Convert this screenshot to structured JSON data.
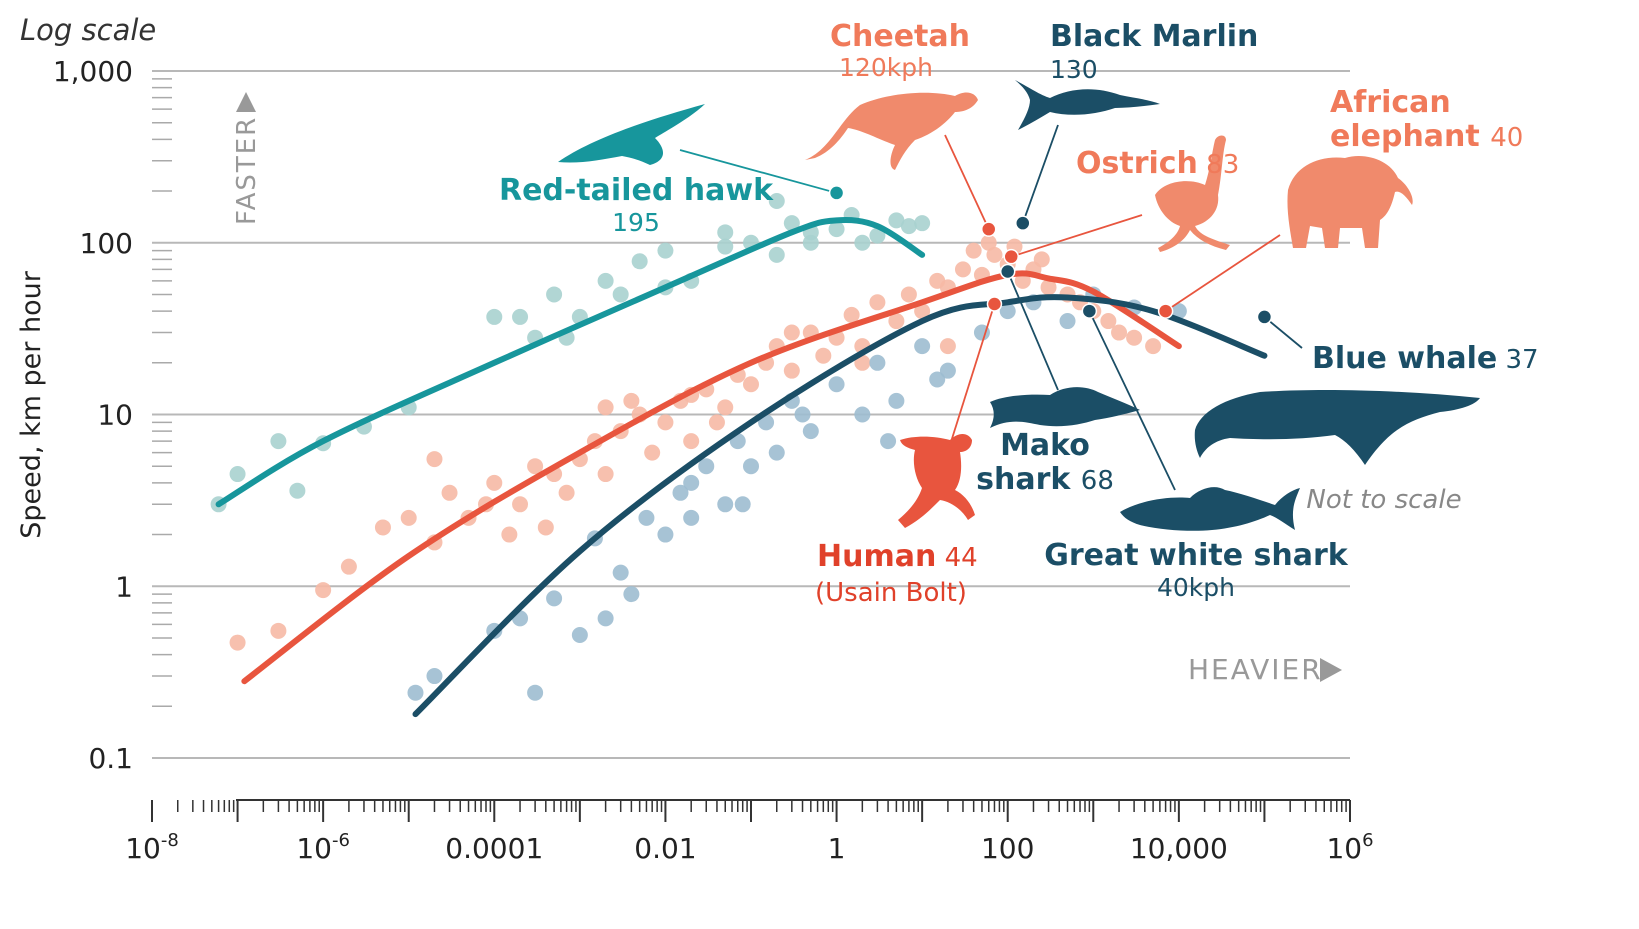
{
  "chart_data": {
    "type": "scatter",
    "title": "",
    "y_scale_note": "Log scale",
    "xlabel": "",
    "ylabel": "Speed, km per hour",
    "x_scale": "log",
    "y_scale": "log",
    "xlim": [
      1e-08,
      1000000
    ],
    "ylim": [
      0.1,
      1000
    ],
    "grid": "horizontal",
    "x_ticks": [
      {
        "value": 1e-08,
        "label": "10",
        "sup": "-8"
      },
      {
        "value": 1e-06,
        "label": "10",
        "sup": "-6"
      },
      {
        "value": 0.0001,
        "label": "0.0001",
        "sup": ""
      },
      {
        "value": 0.01,
        "label": "0.01",
        "sup": ""
      },
      {
        "value": 1,
        "label": "1",
        "sup": ""
      },
      {
        "value": 100,
        "label": "100",
        "sup": ""
      },
      {
        "value": 10000,
        "label": "10,000",
        "sup": ""
      },
      {
        "value": 1000000,
        "label": "10",
        "sup": "6"
      }
    ],
    "y_ticks": [
      {
        "value": 0.1,
        "label": "0.1"
      },
      {
        "value": 1,
        "label": "1"
      },
      {
        "value": 10,
        "label": "10"
      },
      {
        "value": 100,
        "label": "100"
      },
      {
        "value": 1000,
        "label": "1,000"
      }
    ],
    "direction_labels": {
      "faster": "FASTER",
      "heavier": "HEAVIER"
    },
    "note": "Not to scale",
    "colors": {
      "fliers": "#17969c",
      "fliers_points": "#a8d2cf",
      "runners": "#e8553e",
      "runners_points": "#f6b9a5",
      "swimmers": "#1b4e66",
      "swimmers_points": "#9dbcd0",
      "grid": "#b8b8b8",
      "axis": "#333333"
    },
    "series": [
      {
        "group": "fliers",
        "trend": [
          [
            6e-08,
            3
          ],
          [
            1e-06,
            7
          ],
          [
            0.0001,
            20
          ],
          [
            0.01,
            55
          ],
          [
            0.3,
            115
          ],
          [
            1,
            135
          ],
          [
            3,
            125
          ],
          [
            10,
            85
          ]
        ],
        "points": [
          [
            6e-08,
            3
          ],
          [
            1e-07,
            4.5
          ],
          [
            3e-07,
            7
          ],
          [
            5e-07,
            3.6
          ],
          [
            1e-06,
            6.8
          ],
          [
            3e-06,
            8.5
          ],
          [
            1e-05,
            11
          ],
          [
            0.0001,
            37
          ],
          [
            0.0002,
            37
          ],
          [
            0.0003,
            28
          ],
          [
            0.0005,
            50
          ],
          [
            0.0007,
            28
          ],
          [
            0.001,
            37
          ],
          [
            0.002,
            60
          ],
          [
            0.003,
            50
          ],
          [
            0.005,
            78
          ],
          [
            0.01,
            90
          ],
          [
            0.01,
            55
          ],
          [
            0.02,
            60
          ],
          [
            0.05,
            115
          ],
          [
            0.1,
            100
          ],
          [
            0.2,
            175
          ],
          [
            0.3,
            130
          ],
          [
            0.5,
            100
          ],
          [
            1,
            120
          ],
          [
            1.5,
            145
          ],
          [
            2,
            100
          ],
          [
            3,
            110
          ],
          [
            5,
            135
          ],
          [
            7,
            125
          ],
          [
            10,
            130
          ],
          [
            0.05,
            95
          ],
          [
            0.2,
            85
          ],
          [
            0.5,
            115
          ]
        ]
      },
      {
        "group": "runners",
        "trend": [
          [
            1.2e-07,
            0.28
          ],
          [
            1e-05,
            1.5
          ],
          [
            0.001,
            6
          ],
          [
            0.1,
            20
          ],
          [
            10,
            45
          ],
          [
            100,
            65
          ],
          [
            300,
            62
          ],
          [
            1000,
            52
          ],
          [
            10000,
            25
          ]
        ],
        "points": [
          [
            1e-07,
            0.47
          ],
          [
            3e-07,
            0.55
          ],
          [
            1e-06,
            0.95
          ],
          [
            2e-06,
            1.3
          ],
          [
            5e-06,
            2.2
          ],
          [
            1e-05,
            2.5
          ],
          [
            2e-05,
            1.8
          ],
          [
            3e-05,
            3.5
          ],
          [
            5e-05,
            2.5
          ],
          [
            0.0001,
            4
          ],
          [
            0.00015,
            2
          ],
          [
            0.0002,
            3
          ],
          [
            0.0003,
            5
          ],
          [
            0.0005,
            4.5
          ],
          [
            0.0007,
            3.5
          ],
          [
            0.001,
            5.5
          ],
          [
            0.0015,
            7
          ],
          [
            0.002,
            4.5
          ],
          [
            0.003,
            8
          ],
          [
            0.005,
            10
          ],
          [
            0.007,
            6
          ],
          [
            0.01,
            9
          ],
          [
            0.015,
            12
          ],
          [
            0.02,
            7
          ],
          [
            0.03,
            14
          ],
          [
            0.05,
            11
          ],
          [
            0.07,
            17
          ],
          [
            0.1,
            15
          ],
          [
            0.15,
            20
          ],
          [
            0.2,
            25
          ],
          [
            0.3,
            18
          ],
          [
            0.5,
            30
          ],
          [
            0.7,
            22
          ],
          [
            1,
            28
          ],
          [
            1.5,
            38
          ],
          [
            2,
            25
          ],
          [
            3,
            45
          ],
          [
            5,
            35
          ],
          [
            7,
            50
          ],
          [
            10,
            40
          ],
          [
            15,
            60
          ],
          [
            20,
            55
          ],
          [
            30,
            70
          ],
          [
            50,
            65
          ],
          [
            70,
            85
          ],
          [
            100,
            75
          ],
          [
            150,
            60
          ],
          [
            200,
            70
          ],
          [
            300,
            55
          ],
          [
            500,
            50
          ],
          [
            700,
            45
          ],
          [
            1000,
            40
          ],
          [
            1500,
            35
          ],
          [
            2000,
            30
          ],
          [
            3000,
            28
          ],
          [
            5000,
            25
          ],
          [
            2e-05,
            5.5
          ],
          [
            8e-05,
            3
          ],
          [
            0.0004,
            2.2
          ],
          [
            0.002,
            11
          ],
          [
            0.004,
            12
          ],
          [
            0.02,
            13
          ],
          [
            0.04,
            9
          ],
          [
            0.3,
            30
          ],
          [
            2,
            20
          ],
          [
            20,
            25
          ],
          [
            40,
            90
          ],
          [
            60,
            100
          ],
          [
            120,
            95
          ],
          [
            250,
            80
          ]
        ]
      },
      {
        "group": "swimmers",
        "trend": [
          [
            1.2e-05,
            0.18
          ],
          [
            0.001,
            1.6
          ],
          [
            0.1,
            9
          ],
          [
            10,
            35
          ],
          [
            100,
            45
          ],
          [
            500,
            48
          ],
          [
            5000,
            40
          ],
          [
            100000,
            22
          ]
        ],
        "points": [
          [
            1.2e-05,
            0.24
          ],
          [
            2e-05,
            0.3
          ],
          [
            0.0001,
            0.55
          ],
          [
            0.0002,
            0.65
          ],
          [
            0.0003,
            0.24
          ],
          [
            0.0005,
            0.85
          ],
          [
            0.001,
            0.52
          ],
          [
            0.0015,
            1.9
          ],
          [
            0.002,
            0.65
          ],
          [
            0.003,
            1.2
          ],
          [
            0.004,
            0.9
          ],
          [
            0.006,
            2.5
          ],
          [
            0.01,
            2
          ],
          [
            0.015,
            3.5
          ],
          [
            0.02,
            4
          ],
          [
            0.03,
            5
          ],
          [
            0.05,
            3
          ],
          [
            0.07,
            7
          ],
          [
            0.1,
            5
          ],
          [
            0.15,
            9
          ],
          [
            0.2,
            6
          ],
          [
            0.3,
            12
          ],
          [
            0.5,
            8
          ],
          [
            1,
            15
          ],
          [
            2,
            10
          ],
          [
            3,
            20
          ],
          [
            5,
            12
          ],
          [
            10,
            25
          ],
          [
            20,
            18
          ],
          [
            50,
            30
          ],
          [
            100,
            40
          ],
          [
            200,
            45
          ],
          [
            500,
            35
          ],
          [
            1000,
            50
          ],
          [
            3000,
            42
          ],
          [
            10000,
            40
          ],
          [
            0.02,
            2.5
          ],
          [
            0.08,
            3
          ],
          [
            0.4,
            10
          ],
          [
            4,
            7
          ],
          [
            15,
            16
          ]
        ]
      }
    ],
    "highlights": [
      {
        "name": "Red-tailed hawk",
        "value_label": "195",
        "group": "fliers",
        "x": 1,
        "y": 195
      },
      {
        "name": "Cheetah",
        "value_label": "120kph",
        "group": "runners",
        "x": 60,
        "y": 120
      },
      {
        "name": "Black Marlin",
        "value_label": "130",
        "group": "swimmers",
        "x": 150,
        "y": 130
      },
      {
        "name": "Ostrich",
        "value_label": "83",
        "group": "runners",
        "x": 110,
        "y": 83
      },
      {
        "name": "African elephant",
        "value_label": "40",
        "group": "runners",
        "x": 7000,
        "y": 40
      },
      {
        "name": "Mako shark",
        "value_label": "68",
        "group": "swimmers",
        "x": 100,
        "y": 68
      },
      {
        "name": "Human",
        "value_label": "44",
        "name_note": "(Usain Bolt)",
        "group": "runners",
        "x": 70,
        "y": 44
      },
      {
        "name": "Great white shark",
        "value_label": "40kph",
        "group": "swimmers",
        "x": 900,
        "y": 40
      },
      {
        "name": "Blue whale",
        "value_label": "37",
        "group": "swimmers",
        "x": 100000,
        "y": 37
      }
    ]
  }
}
